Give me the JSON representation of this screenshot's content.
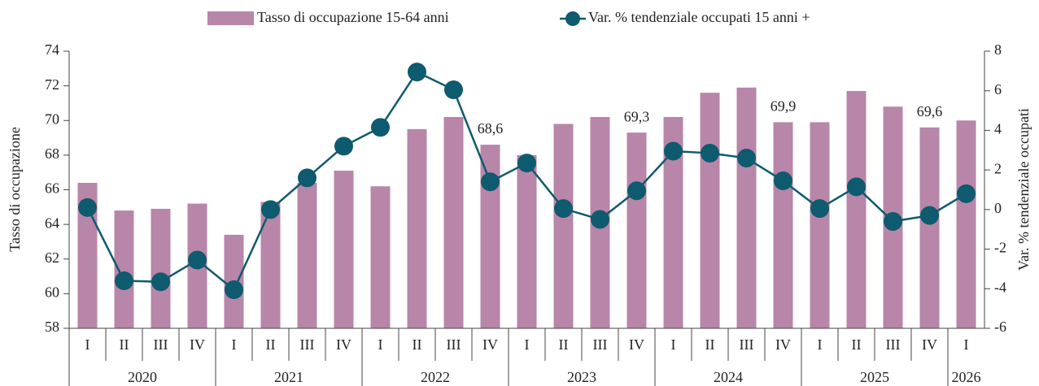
{
  "chart_data": {
    "type": "bar-line",
    "y_label": "Tasso di occupazione",
    "y2_label": "Var. % tendenziale occupati",
    "categories": [
      "I",
      "II",
      "III",
      "IV",
      "I",
      "II",
      "III",
      "IV",
      "I",
      "II",
      "III",
      "IV",
      "I",
      "II",
      "III",
      "IV",
      "I",
      "II",
      "III",
      "IV",
      "I",
      "II",
      "III",
      "IV",
      "I"
    ],
    "groups": [
      {
        "label": "2020",
        "size": 4
      },
      {
        "label": "2021",
        "size": 4
      },
      {
        "label": "2022",
        "size": 4
      },
      {
        "label": "2023",
        "size": 4
      },
      {
        "label": "2024",
        "size": 4
      },
      {
        "label": "2025",
        "size": 4
      },
      {
        "label": "2026",
        "size": 1
      }
    ],
    "series": [
      {
        "name": "Tasso di occupazione 15-64 anni",
        "color": "#b886a8",
        "kind": "bar",
        "axis": "y",
        "values": [
          66.4,
          64.8,
          64.9,
          65.2,
          63.4,
          65.3,
          66.4,
          67.1,
          66.2,
          69.5,
          70.2,
          68.6,
          68.0,
          69.8,
          70.2,
          69.3,
          70.2,
          71.6,
          71.9,
          69.9,
          69.9,
          71.7,
          70.8,
          69.6,
          70.0
        ],
        "value_labels": [
          null,
          null,
          null,
          null,
          null,
          null,
          null,
          null,
          null,
          null,
          null,
          "68,6",
          null,
          null,
          null,
          "69,3",
          null,
          null,
          null,
          "69,9",
          null,
          null,
          null,
          "69,6",
          null
        ]
      },
      {
        "name": "Var. % tendenziale occupati 15 anni +",
        "color": "#0e5a6e",
        "kind": "line",
        "axis": "y2",
        "values": [
          0.1,
          -3.6,
          -3.65,
          -2.55,
          -4.05,
          0.0,
          1.6,
          3.2,
          4.15,
          6.95,
          6.05,
          1.4,
          2.35,
          0.05,
          -0.5,
          0.95,
          2.95,
          2.85,
          2.6,
          1.45,
          0.05,
          1.15,
          -0.6,
          -0.3,
          0.8
        ]
      }
    ],
    "ylim": [
      58,
      74
    ],
    "yticks": [
      58,
      60,
      62,
      64,
      66,
      68,
      70,
      72,
      74
    ],
    "y2lim": [
      -6,
      8
    ],
    "y2ticks": [
      -6,
      -4,
      -2,
      0,
      2,
      4,
      6,
      8
    ],
    "legend": "top"
  }
}
